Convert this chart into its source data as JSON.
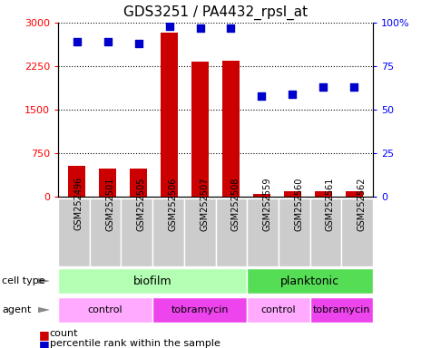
{
  "title": "GDS3251 / PA4432_rpsl_at",
  "samples": [
    "GSM252496",
    "GSM252501",
    "GSM252505",
    "GSM252506",
    "GSM252507",
    "GSM252508",
    "GSM252559",
    "GSM252560",
    "GSM252561",
    "GSM252562"
  ],
  "counts": [
    530,
    490,
    480,
    2820,
    2320,
    2340,
    50,
    90,
    90,
    100
  ],
  "percentiles": [
    89,
    89,
    88,
    98,
    97,
    97,
    58,
    59,
    63,
    63
  ],
  "ylim_left": [
    0,
    3000
  ],
  "ylim_right": [
    0,
    100
  ],
  "yticks_left": [
    0,
    750,
    1500,
    2250,
    3000
  ],
  "yticks_right": [
    0,
    25,
    50,
    75,
    100
  ],
  "bar_color": "#cc0000",
  "dot_color": "#0000cc",
  "cell_type_biofilm_color": "#b3ffb3",
  "cell_type_planktonic_color": "#55dd55",
  "agent_control_color": "#ffaaff",
  "agent_tobramycin_color": "#ee44ee",
  "sample_box_color": "#cccccc",
  "cell_type_labels": [
    [
      "biofilm",
      0,
      6
    ],
    [
      "planktonic",
      6,
      10
    ]
  ],
  "agent_labels": [
    [
      "control",
      0,
      3
    ],
    [
      "tobramycin",
      3,
      6
    ],
    [
      "control",
      6,
      8
    ],
    [
      "tobramycin",
      8,
      10
    ]
  ],
  "legend_count_label": "count",
  "legend_pct_label": "percentile rank within the sample"
}
